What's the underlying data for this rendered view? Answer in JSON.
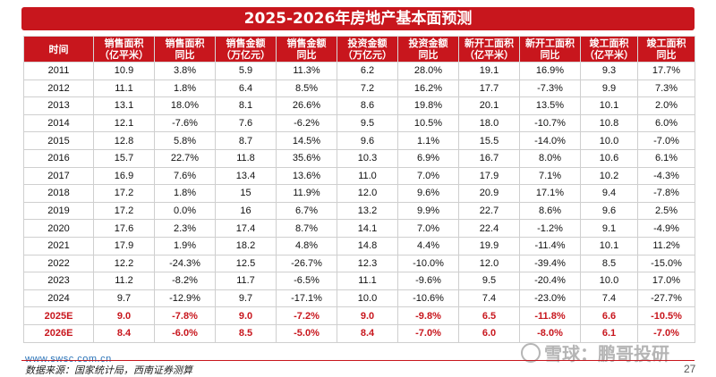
{
  "title": "2025-2026年房地产基本面预测",
  "columns": [
    {
      "line1": "时间",
      "line2": ""
    },
    {
      "line1": "销售面积",
      "line2": "（亿平米）"
    },
    {
      "line1": "销售面积",
      "line2": "同比"
    },
    {
      "line1": "销售金额",
      "line2": "（万亿元）"
    },
    {
      "line1": "销售金额",
      "line2": "同比"
    },
    {
      "line1": "投资金额",
      "line2": "（万亿元）"
    },
    {
      "line1": "投资金额",
      "line2": "同比"
    },
    {
      "line1": "新开工面积",
      "line2": "（亿平米）"
    },
    {
      "line1": "新开工面积",
      "line2": "同比"
    },
    {
      "line1": "竣工面积",
      "line2": "（亿平米）"
    },
    {
      "line1": "竣工面积",
      "line2": "同比"
    }
  ],
  "rows": [
    {
      "forecast": false,
      "cells": [
        "2011",
        "10.9",
        "3.8%",
        "5.9",
        "11.3%",
        "6.2",
        "28.0%",
        "19.1",
        "16.9%",
        "9.3",
        "17.7%"
      ]
    },
    {
      "forecast": false,
      "cells": [
        "2012",
        "11.1",
        "1.8%",
        "6.4",
        "8.5%",
        "7.2",
        "16.2%",
        "17.7",
        "-7.3%",
        "9.9",
        "7.3%"
      ]
    },
    {
      "forecast": false,
      "cells": [
        "2013",
        "13.1",
        "18.0%",
        "8.1",
        "26.6%",
        "8.6",
        "19.8%",
        "20.1",
        "13.5%",
        "10.1",
        "2.0%"
      ]
    },
    {
      "forecast": false,
      "cells": [
        "2014",
        "12.1",
        "-7.6%",
        "7.6",
        "-6.2%",
        "9.5",
        "10.5%",
        "18.0",
        "-10.7%",
        "10.8",
        "6.0%"
      ]
    },
    {
      "forecast": false,
      "cells": [
        "2015",
        "12.8",
        "5.8%",
        "8.7",
        "14.5%",
        "9.6",
        "1.1%",
        "15.5",
        "-14.0%",
        "10.0",
        "-7.0%"
      ]
    },
    {
      "forecast": false,
      "cells": [
        "2016",
        "15.7",
        "22.7%",
        "11.8",
        "35.6%",
        "10.3",
        "6.9%",
        "16.7",
        "8.0%",
        "10.6",
        "6.1%"
      ]
    },
    {
      "forecast": false,
      "cells": [
        "2017",
        "16.9",
        "7.6%",
        "13.4",
        "13.6%",
        "11.0",
        "7.0%",
        "17.9",
        "7.1%",
        "10.2",
        "-4.3%"
      ]
    },
    {
      "forecast": false,
      "cells": [
        "2018",
        "17.2",
        "1.8%",
        "15",
        "11.9%",
        "12.0",
        "9.6%",
        "20.9",
        "17.1%",
        "9.4",
        "-7.8%"
      ]
    },
    {
      "forecast": false,
      "cells": [
        "2019",
        "17.2",
        "0.0%",
        "16",
        "6.7%",
        "13.2",
        "9.9%",
        "22.7",
        "8.6%",
        "9.6",
        "2.5%"
      ]
    },
    {
      "forecast": false,
      "cells": [
        "2020",
        "17.6",
        "2.3%",
        "17.4",
        "8.7%",
        "14.1",
        "7.0%",
        "22.4",
        "-1.2%",
        "9.1",
        "-4.9%"
      ]
    },
    {
      "forecast": false,
      "cells": [
        "2021",
        "17.9",
        "1.9%",
        "18.2",
        "4.8%",
        "14.8",
        "4.4%",
        "19.9",
        "-11.4%",
        "10.1",
        "11.2%"
      ]
    },
    {
      "forecast": false,
      "cells": [
        "2022",
        "12.2",
        "-24.3%",
        "12.5",
        "-26.7%",
        "12.3",
        "-10.0%",
        "12.0",
        "-39.4%",
        "8.5",
        "-15.0%"
      ]
    },
    {
      "forecast": false,
      "cells": [
        "2023",
        "11.2",
        "-8.2%",
        "11.7",
        "-6.5%",
        "11.1",
        "-9.6%",
        "9.5",
        "-20.4%",
        "10.0",
        "17.0%"
      ]
    },
    {
      "forecast": false,
      "cells": [
        "2024",
        "9.7",
        "-12.9%",
        "9.7",
        "-17.1%",
        "10.0",
        "-10.6%",
        "7.4",
        "-23.0%",
        "7.4",
        "-27.7%"
      ]
    },
    {
      "forecast": true,
      "cells": [
        "2025E",
        "9.0",
        "-7.8%",
        "9.0",
        "-7.2%",
        "9.0",
        "-9.8%",
        "6.5",
        "-11.8%",
        "6.6",
        "-10.5%"
      ]
    },
    {
      "forecast": true,
      "cells": [
        "2026E",
        "8.4",
        "-6.0%",
        "8.5",
        "-5.0%",
        "8.4",
        "-7.0%",
        "6.0",
        "-8.0%",
        "6.1",
        "-7.0%"
      ]
    }
  ],
  "footer": {
    "website": "www.swsc.com.cn",
    "source": "数据来源：国家统计局，西南证券测算",
    "watermark": "雪球：鹏哥投研",
    "page_number": "27"
  },
  "colors": {
    "accent": "#c8161d",
    "forecast_text": "#c8161d"
  }
}
